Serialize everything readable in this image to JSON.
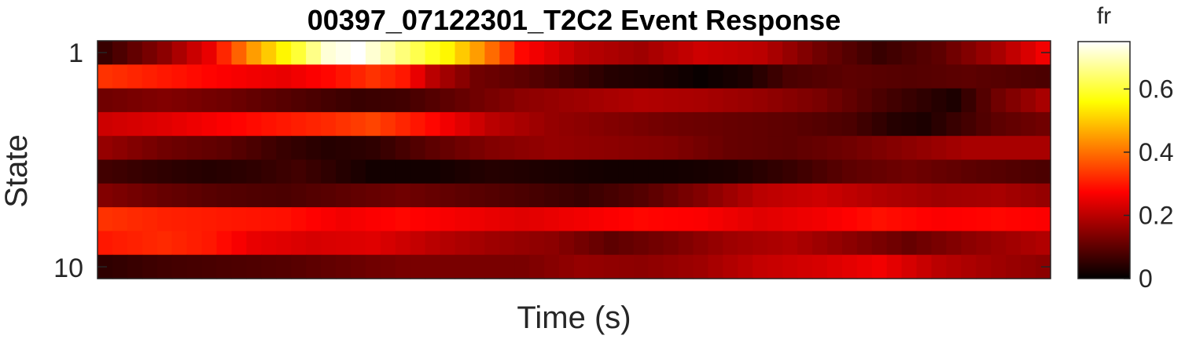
{
  "chart_data": {
    "type": "heatmap",
    "title": "00397_07122301_T2C2 Event Response",
    "xlabel": "Time (s)",
    "ylabel": "State",
    "y_tick_labels": [
      "1",
      "10"
    ],
    "n_rows": 10,
    "n_cols": 64,
    "colormap": "hot",
    "colorbar": {
      "label": "fr",
      "range": [
        0,
        0.75
      ],
      "ticks": [
        0,
        0.2,
        0.4,
        0.6
      ],
      "tick_labels": [
        "0",
        "0.2",
        "0.4",
        "0.6"
      ]
    },
    "rows": [
      {
        "state": 1,
        "keys": [
          [
            0,
            0.06
          ],
          [
            4,
            0.15
          ],
          [
            7,
            0.25
          ],
          [
            10,
            0.45
          ],
          [
            13,
            0.6
          ],
          [
            15,
            0.72
          ],
          [
            17,
            0.75
          ],
          [
            20,
            0.65
          ],
          [
            23,
            0.55
          ],
          [
            25,
            0.45
          ],
          [
            28,
            0.28
          ],
          [
            32,
            0.2
          ],
          [
            36,
            0.17
          ],
          [
            40,
            0.22
          ],
          [
            44,
            0.2
          ],
          [
            48,
            0.12
          ],
          [
            52,
            0.06
          ],
          [
            56,
            0.1
          ],
          [
            60,
            0.18
          ],
          [
            63,
            0.26
          ]
        ]
      },
      {
        "state": 2,
        "keys": [
          [
            0,
            0.33
          ],
          [
            4,
            0.3
          ],
          [
            8,
            0.27
          ],
          [
            12,
            0.25
          ],
          [
            15,
            0.28
          ],
          [
            18,
            0.33
          ],
          [
            20,
            0.3
          ],
          [
            22,
            0.2
          ],
          [
            25,
            0.12
          ],
          [
            28,
            0.1
          ],
          [
            31,
            0.07
          ],
          [
            34,
            0.04
          ],
          [
            37,
            0.03
          ],
          [
            40,
            0.01
          ],
          [
            43,
            0.03
          ],
          [
            46,
            0.08
          ],
          [
            50,
            0.1
          ],
          [
            54,
            0.09
          ],
          [
            58,
            0.1
          ],
          [
            63,
            0.08
          ]
        ]
      },
      {
        "state": 3,
        "keys": [
          [
            0,
            0.12
          ],
          [
            4,
            0.14
          ],
          [
            8,
            0.12
          ],
          [
            11,
            0.1
          ],
          [
            14,
            0.08
          ],
          [
            17,
            0.06
          ],
          [
            20,
            0.07
          ],
          [
            24,
            0.11
          ],
          [
            28,
            0.15
          ],
          [
            32,
            0.17
          ],
          [
            36,
            0.19
          ],
          [
            40,
            0.18
          ],
          [
            44,
            0.16
          ],
          [
            48,
            0.13
          ],
          [
            52,
            0.08
          ],
          [
            55,
            0.05
          ],
          [
            57,
            0.03
          ],
          [
            60,
            0.12
          ],
          [
            63,
            0.18
          ]
        ]
      },
      {
        "state": 4,
        "keys": [
          [
            0,
            0.22
          ],
          [
            4,
            0.24
          ],
          [
            8,
            0.27
          ],
          [
            12,
            0.3
          ],
          [
            15,
            0.32
          ],
          [
            18,
            0.35
          ],
          [
            22,
            0.28
          ],
          [
            26,
            0.2
          ],
          [
            30,
            0.16
          ],
          [
            34,
            0.14
          ],
          [
            38,
            0.12
          ],
          [
            42,
            0.11
          ],
          [
            46,
            0.1
          ],
          [
            50,
            0.08
          ],
          [
            53,
            0.04
          ],
          [
            55,
            0.03
          ],
          [
            57,
            0.06
          ],
          [
            60,
            0.1
          ],
          [
            63,
            0.12
          ]
        ]
      },
      {
        "state": 5,
        "keys": [
          [
            0,
            0.16
          ],
          [
            4,
            0.12
          ],
          [
            8,
            0.1
          ],
          [
            12,
            0.06
          ],
          [
            15,
            0.04
          ],
          [
            18,
            0.05
          ],
          [
            22,
            0.1
          ],
          [
            26,
            0.14
          ],
          [
            30,
            0.16
          ],
          [
            34,
            0.15
          ],
          [
            38,
            0.14
          ],
          [
            42,
            0.11
          ],
          [
            46,
            0.1
          ],
          [
            50,
            0.12
          ],
          [
            54,
            0.15
          ],
          [
            58,
            0.18
          ],
          [
            63,
            0.18
          ]
        ]
      },
      {
        "state": 6,
        "keys": [
          [
            0,
            0.07
          ],
          [
            4,
            0.05
          ],
          [
            7,
            0.04
          ],
          [
            10,
            0.05
          ],
          [
            13,
            0.07
          ],
          [
            15,
            0.05
          ],
          [
            18,
            0.02
          ],
          [
            22,
            0.02
          ],
          [
            26,
            0.04
          ],
          [
            30,
            0.03
          ],
          [
            34,
            0.02
          ],
          [
            38,
            0.02
          ],
          [
            42,
            0.03
          ],
          [
            46,
            0.06
          ],
          [
            50,
            0.1
          ],
          [
            54,
            0.12
          ],
          [
            58,
            0.1
          ],
          [
            63,
            0.08
          ]
        ]
      },
      {
        "state": 7,
        "keys": [
          [
            0,
            0.14
          ],
          [
            4,
            0.11
          ],
          [
            8,
            0.09
          ],
          [
            12,
            0.08
          ],
          [
            16,
            0.1
          ],
          [
            20,
            0.12
          ],
          [
            24,
            0.1
          ],
          [
            28,
            0.08
          ],
          [
            32,
            0.06
          ],
          [
            36,
            0.09
          ],
          [
            40,
            0.14
          ],
          [
            44,
            0.2
          ],
          [
            48,
            0.22
          ],
          [
            52,
            0.19
          ],
          [
            56,
            0.17
          ],
          [
            60,
            0.18
          ],
          [
            63,
            0.16
          ]
        ]
      },
      {
        "state": 8,
        "keys": [
          [
            0,
            0.33
          ],
          [
            4,
            0.31
          ],
          [
            8,
            0.3
          ],
          [
            12,
            0.29
          ],
          [
            16,
            0.26
          ],
          [
            20,
            0.28
          ],
          [
            24,
            0.26
          ],
          [
            28,
            0.24
          ],
          [
            32,
            0.26
          ],
          [
            36,
            0.28
          ],
          [
            40,
            0.27
          ],
          [
            44,
            0.24
          ],
          [
            48,
            0.26
          ],
          [
            52,
            0.29
          ],
          [
            56,
            0.27
          ],
          [
            60,
            0.28
          ],
          [
            63,
            0.27
          ]
        ]
      },
      {
        "state": 9,
        "keys": [
          [
            0,
            0.3
          ],
          [
            4,
            0.32
          ],
          [
            7,
            0.3
          ],
          [
            10,
            0.25
          ],
          [
            14,
            0.23
          ],
          [
            18,
            0.24
          ],
          [
            22,
            0.2
          ],
          [
            26,
            0.17
          ],
          [
            30,
            0.15
          ],
          [
            34,
            0.1
          ],
          [
            38,
            0.13
          ],
          [
            42,
            0.17
          ],
          [
            46,
            0.19
          ],
          [
            50,
            0.15
          ],
          [
            54,
            0.11
          ],
          [
            58,
            0.15
          ],
          [
            63,
            0.19
          ]
        ]
      },
      {
        "state": 10,
        "keys": [
          [
            0,
            0.05
          ],
          [
            4,
            0.07
          ],
          [
            8,
            0.08
          ],
          [
            12,
            0.09
          ],
          [
            16,
            0.11
          ],
          [
            20,
            0.13
          ],
          [
            24,
            0.13
          ],
          [
            28,
            0.13
          ],
          [
            32,
            0.16
          ],
          [
            36,
            0.15
          ],
          [
            40,
            0.17
          ],
          [
            44,
            0.21
          ],
          [
            48,
            0.23
          ],
          [
            52,
            0.26
          ],
          [
            56,
            0.2
          ],
          [
            60,
            0.17
          ],
          [
            63,
            0.15
          ]
        ]
      }
    ]
  }
}
